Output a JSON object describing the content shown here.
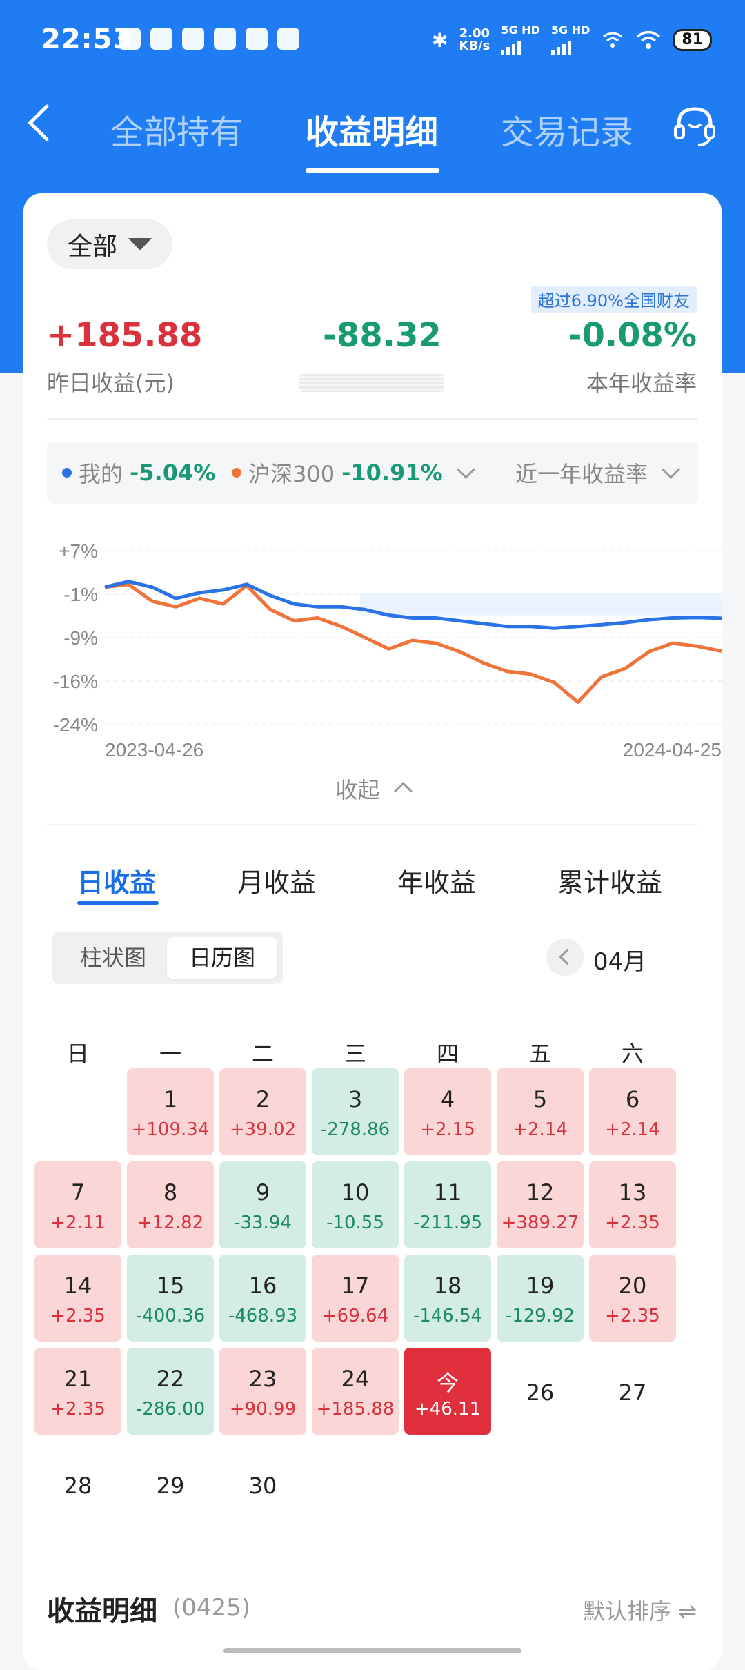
{
  "status_bar": {
    "time": "22:53",
    "speed_top": "2.00",
    "speed_bottom": "KB/s",
    "net1": "5G HD",
    "net2": "5G HD",
    "battery": "81"
  },
  "nav": {
    "tabs": [
      "全部持有",
      "收益明细",
      "交易记录"
    ],
    "active_tab": "收益明细"
  },
  "summary": {
    "filter_label": "全部",
    "badge": "超过6.90%全国财友",
    "yesterday_value": "+185.88",
    "yesterday_label": "昨日收益(元)",
    "middle_value": "-88.32",
    "year_rate_value": "-0.08%",
    "year_rate_label": "本年收益率"
  },
  "legend": {
    "mine_label": "我的",
    "mine_value": "-5.04%",
    "bench_label": "沪深300",
    "bench_value": "-10.91%",
    "period_label": "近一年收益率"
  },
  "chart_data": {
    "type": "line",
    "y_tick_labels": [
      "+7%",
      "-1%",
      "-9%",
      "-16%",
      "-24%"
    ],
    "ylim": [
      -24,
      7
    ],
    "x_start": "2023-04-26",
    "x_end": "2024-04-25",
    "series": [
      {
        "name": "我的",
        "color": "#2a73e6",
        "x": [
          "2023-04-26",
          "2023-05-10",
          "2023-05-24",
          "2023-06-07",
          "2023-06-21",
          "2023-07-05",
          "2023-07-19",
          "2023-08-02",
          "2023-08-16",
          "2023-08-30",
          "2023-09-13",
          "2023-09-27",
          "2023-10-11",
          "2023-10-25",
          "2023-11-08",
          "2023-11-22",
          "2023-12-06",
          "2023-12-20",
          "2024-01-03",
          "2024-01-17",
          "2024-01-31",
          "2024-02-14",
          "2024-02-28",
          "2024-03-13",
          "2024-03-27",
          "2024-04-10",
          "2024-04-25"
        ],
        "values": [
          0.5,
          1.5,
          0.5,
          -1.5,
          -0.5,
          0,
          1.0,
          -1.0,
          -2.5,
          -3.0,
          -3.0,
          -3.5,
          -4.5,
          -5.0,
          -5.0,
          -5.5,
          -6.0,
          -6.5,
          -6.5,
          -6.8,
          -6.5,
          -6.2,
          -5.8,
          -5.3,
          -5.0,
          -4.9,
          -5.04
        ]
      },
      {
        "name": "沪深300",
        "color": "#f0733a",
        "x": [
          "2023-04-26",
          "2023-05-10",
          "2023-05-24",
          "2023-06-07",
          "2023-06-21",
          "2023-07-05",
          "2023-07-19",
          "2023-08-02",
          "2023-08-16",
          "2023-08-30",
          "2023-09-13",
          "2023-09-27",
          "2023-10-11",
          "2023-10-25",
          "2023-11-08",
          "2023-11-22",
          "2023-12-06",
          "2023-12-20",
          "2024-01-03",
          "2024-01-17",
          "2024-01-31",
          "2024-02-14",
          "2024-02-28",
          "2024-03-13",
          "2024-03-27",
          "2024-04-10",
          "2024-04-25"
        ],
        "values": [
          0.5,
          1.0,
          -2.0,
          -3.0,
          -1.5,
          -2.5,
          0.8,
          -3.5,
          -5.5,
          -5.0,
          -6.5,
          -8.5,
          -10.5,
          -9.0,
          -9.5,
          -11.0,
          -13.0,
          -14.5,
          -15.0,
          -16.5,
          -20.0,
          -15.5,
          -14.0,
          -11.0,
          -9.5,
          -10.0,
          -10.91
        ]
      }
    ]
  },
  "collapse_label": "收起",
  "period_tabs": [
    "日收益",
    "月收益",
    "年收益",
    "累计收益"
  ],
  "view_toggle": [
    "柱状图",
    "日历图"
  ],
  "month_label": "04月",
  "weekdays": [
    "日",
    "一",
    "二",
    "三",
    "四",
    "五",
    "六"
  ],
  "calendar": {
    "first_weekday": 1,
    "days": [
      {
        "d": "1",
        "v": "+109.34",
        "s": "pos"
      },
      {
        "d": "2",
        "v": "+39.02",
        "s": "pos"
      },
      {
        "d": "3",
        "v": "-278.86",
        "s": "neg"
      },
      {
        "d": "4",
        "v": "+2.15",
        "s": "pos"
      },
      {
        "d": "5",
        "v": "+2.14",
        "s": "pos"
      },
      {
        "d": "6",
        "v": "+2.14",
        "s": "pos"
      },
      {
        "d": "7",
        "v": "+2.11",
        "s": "pos"
      },
      {
        "d": "8",
        "v": "+12.82",
        "s": "pos"
      },
      {
        "d": "9",
        "v": "-33.94",
        "s": "neg"
      },
      {
        "d": "10",
        "v": "-10.55",
        "s": "neg"
      },
      {
        "d": "11",
        "v": "-211.95",
        "s": "neg"
      },
      {
        "d": "12",
        "v": "+389.27",
        "s": "pos"
      },
      {
        "d": "13",
        "v": "+2.35",
        "s": "pos"
      },
      {
        "d": "14",
        "v": "+2.35",
        "s": "pos"
      },
      {
        "d": "15",
        "v": "-400.36",
        "s": "neg"
      },
      {
        "d": "16",
        "v": "-468.93",
        "s": "neg"
      },
      {
        "d": "17",
        "v": "+69.64",
        "s": "pos"
      },
      {
        "d": "18",
        "v": "-146.54",
        "s": "neg"
      },
      {
        "d": "19",
        "v": "-129.92",
        "s": "neg"
      },
      {
        "d": "20",
        "v": "+2.35",
        "s": "pos"
      },
      {
        "d": "21",
        "v": "+2.35",
        "s": "pos"
      },
      {
        "d": "22",
        "v": "-286.00",
        "s": "neg"
      },
      {
        "d": "23",
        "v": "+90.99",
        "s": "pos"
      },
      {
        "d": "24",
        "v": "+185.88",
        "s": "pos"
      },
      {
        "d": "今",
        "v": "+46.11",
        "s": "today"
      },
      {
        "d": "26",
        "v": "",
        "s": "plain"
      },
      {
        "d": "27",
        "v": "",
        "s": "plain"
      },
      {
        "d": "28",
        "v": "",
        "s": "plain"
      },
      {
        "d": "29",
        "v": "",
        "s": "plain"
      },
      {
        "d": "30",
        "v": "",
        "s": "plain"
      }
    ]
  },
  "detail": {
    "title": "收益明细",
    "date": "(0425)",
    "sort_label": "默认排序"
  },
  "colors": {
    "brand_blue": "#1f7cf3",
    "gain_red": "#d9323d",
    "loss_green": "#198a63"
  }
}
